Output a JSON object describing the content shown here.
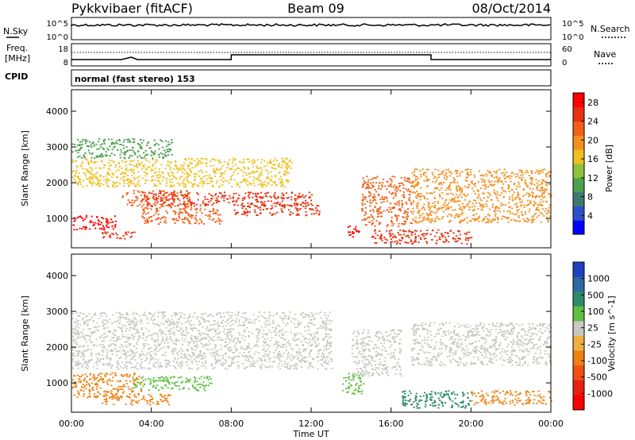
{
  "header": {
    "radar": "Pykkvibaer (fitACF)",
    "beam": "Beam 09",
    "date": "08/Oct/2014"
  },
  "noise_panel": {
    "left_label": "N.Sky",
    "right_label": "N.Search",
    "left_ticks": [
      "10^5",
      "10^0"
    ],
    "right_ticks": [
      "10^5",
      "10^0"
    ]
  },
  "freq_panel": {
    "left_label_1": "Freq.",
    "left_label_2": "[MHz]",
    "left_ticks": [
      "18",
      "8"
    ],
    "right_ticks": [
      "60",
      "0"
    ],
    "right_label": "Nave"
  },
  "cpid": {
    "label": "CPID",
    "text": "normal (fast stereo) 153"
  },
  "chart_data": [
    {
      "type": "heatmap",
      "title": "",
      "xlabel": "",
      "ylabel": "Slant Range [km]",
      "x_ticks": [
        "00:00",
        "04:00",
        "08:00",
        "12:00",
        "16:00",
        "20:00",
        "00:00"
      ],
      "y_ticks": [
        1000,
        2000,
        3000,
        4000
      ],
      "xlim_hours": [
        0,
        24
      ],
      "ylim_km": [
        180,
        4600
      ],
      "colorbar": {
        "label": "Power [dB]",
        "ticks": [
          4,
          8,
          12,
          16,
          20,
          24,
          28
        ],
        "range": [
          0,
          30
        ],
        "colors": [
          "#0000ff",
          "#2d4fc8",
          "#3c7a70",
          "#4da050",
          "#8fc23a",
          "#f0c020",
          "#f59020",
          "#f06018",
          "#e83010",
          "#ff0000"
        ]
      },
      "scatter_regions": [
        {
          "hours": [
            0,
            2.2
          ],
          "km": [
            700,
            1100
          ],
          "level": 27
        },
        {
          "hours": [
            1.5,
            3.3
          ],
          "km": [
            450,
            650
          ],
          "level": 26
        },
        {
          "hours": [
            2.5,
            6
          ],
          "km": [
            1300,
            1800
          ],
          "level": 22
        },
        {
          "hours": [
            3.5,
            7.5
          ],
          "km": [
            850,
            1300
          ],
          "level": 21
        },
        {
          "hours": [
            3.5,
            12
          ],
          "km": [
            1350,
            1750
          ],
          "level": 25
        },
        {
          "hours": [
            8,
            12.5
          ],
          "km": [
            1100,
            1400
          ],
          "level": 26
        },
        {
          "hours": [
            0,
            11
          ],
          "km": [
            1900,
            2700
          ],
          "level": 15
        },
        {
          "hours": [
            0,
            5
          ],
          "km": [
            2700,
            3250
          ],
          "level": 9
        },
        {
          "hours": [
            13.8,
            14.4
          ],
          "km": [
            500,
            900
          ],
          "level": 28
        },
        {
          "hours": [
            14.5,
            17
          ],
          "km": [
            800,
            2200
          ],
          "level": 22
        },
        {
          "hours": [
            15,
            20
          ],
          "km": [
            300,
            700
          ],
          "level": 26
        },
        {
          "hours": [
            17,
            24
          ],
          "km": [
            900,
            2400
          ],
          "level": 18
        }
      ]
    },
    {
      "type": "heatmap",
      "title": "",
      "xlabel": "Time UT",
      "ylabel": "Slant Range [km]",
      "x_ticks": [
        "00:00",
        "04:00",
        "08:00",
        "12:00",
        "16:00",
        "20:00",
        "00:00"
      ],
      "y_ticks": [
        1000,
        2000,
        3000,
        4000
      ],
      "xlim_hours": [
        0,
        24
      ],
      "ylim_km": [
        180,
        4600
      ],
      "colorbar": {
        "label": "Velocity [m s^-1]",
        "ticks": [
          "1000",
          "500",
          "100",
          "25",
          "-25",
          "-100",
          "-500",
          "-1000"
        ],
        "colors": [
          "#2040c0",
          "#2e6aa0",
          "#2e8a6a",
          "#60c040",
          "#c8c8c0",
          "#f0b040",
          "#f08010",
          "#f05010",
          "#e82010",
          "#ff0000"
        ]
      },
      "scatter_regions": [
        {
          "hours": [
            0,
            3.5
          ],
          "km": [
            600,
            1300
          ],
          "level": -300
        },
        {
          "hours": [
            1.5,
            5
          ],
          "km": [
            400,
            700
          ],
          "level": -200
        },
        {
          "hours": [
            3,
            7
          ],
          "km": [
            800,
            1200
          ],
          "level": 50
        },
        {
          "hours": [
            0,
            13
          ],
          "km": [
            1400,
            3000
          ],
          "level": 0
        },
        {
          "hours": [
            13.5,
            14.6
          ],
          "km": [
            700,
            1300
          ],
          "level": 80
        },
        {
          "hours": [
            14,
            16.5
          ],
          "km": [
            1200,
            2500
          ],
          "level": 0
        },
        {
          "hours": [
            16.5,
            20
          ],
          "km": [
            300,
            800
          ],
          "level": 200
        },
        {
          "hours": [
            20,
            24
          ],
          "km": [
            400,
            800
          ],
          "level": -300
        },
        {
          "hours": [
            17,
            24
          ],
          "km": [
            1500,
            2700
          ],
          "level": 0
        }
      ]
    }
  ]
}
